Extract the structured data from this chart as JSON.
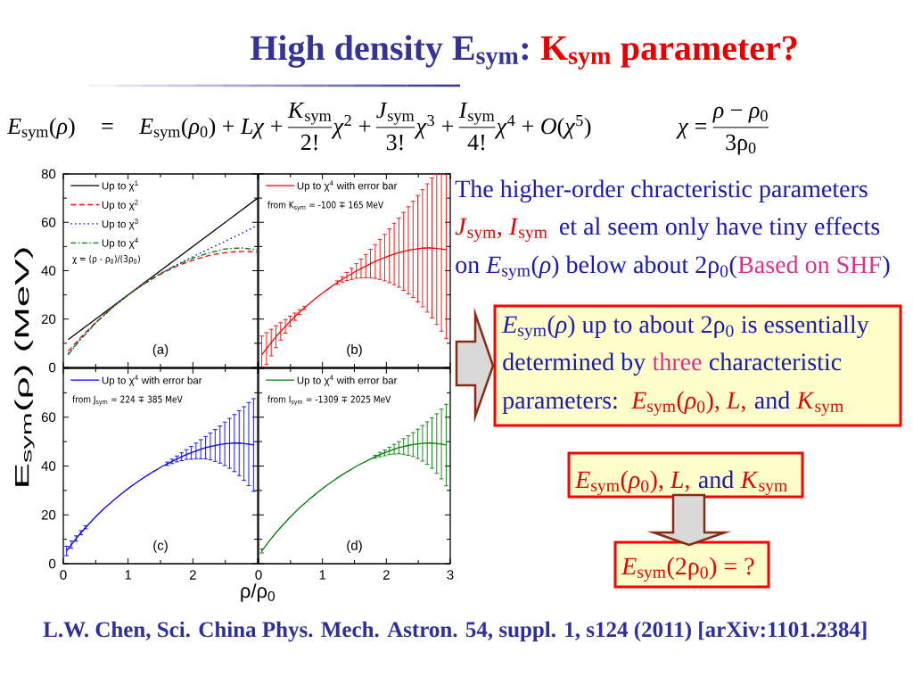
{
  "chart_data": [
    {
      "type": "other",
      "title": "High density E$_{sym}$:",
      "annotations": [
        "K$_{sym}$ parameter?",
        "*E*$_{sym}$(*ρ*)",
        "=",
        "*E*$_{sym}$(*ρ*$_{0}$) + *Lχ* +",
        "*K*$_{sym}$",
        "2!",
        "*χ*$^{2}$ +",
        "*J*$_{sym}$",
        "3!",
        "*χ*$^{3}$ +",
        "*I*$_{sym}$",
        "4!",
        "*χ*$^{4}$ + *O*(*χ*$^{5}$)",
        "*χ* =",
        "*ρ* − *ρ*$_{0}$",
        "3ρ$_{0}$",
        "The higher-order chracteristic parameters",
        "*J*$_{sym}$, *I*$_{sym}$",
        "et al seem only have tiny effects",
        "on *E*$_{sym}$(*ρ*) below about 2ρ$_{0}$(",
        "Based on SHF",
        ")",
        "*E*$_{sym}$(*ρ*) up to about 2ρ$_{0}$ is essentially",
        "determined by",
        "three",
        "characteristic",
        "parameters:",
        "*E*$_{sym}$(*ρ*$_{0}$), *L*,",
        "and",
        "*K*$_{sym}$",
        "*E*$_{sym}$(*ρ*$_{0}$), *L*,",
        "and",
        "*K*$_{sym}$",
        "*E*$_{sym}$(2ρ$_{0}$) = ?",
        "L.W. Chen, Sci. China Phys. Mech. Astron. 54, suppl. 1, s124 (2011) [arXiv:1101.2384]"
      ]
    },
    {
      "type": "line",
      "ylabel": "E$_{sym}$(ρ) (MeV)",
      "xlim": [
        0,
        3
      ],
      "ylim": [
        0,
        80
      ],
      "xticks": [
        0,
        1,
        2,
        3
      ],
      "yticks": [
        0,
        20,
        40,
        60,
        80
      ],
      "tick_labels": "y",
      "legend": "top left",
      "x": [
        0.075,
        0.25,
        0.5,
        0.75,
        1,
        1.25,
        1.5,
        1.75,
        2,
        2.25,
        2.5,
        2.75,
        3
      ],
      "series": [
        {
          "name": "Up to χ$^{1}$",
          "color": "#000000",
          "line_style": "solid",
          "x": [
            0.075,
            3
          ],
          "values": [
            11.5,
            70
          ]
        },
        {
          "name": "Up to χ$^{2}$",
          "color": "#ff0000",
          "line_style": "dashed",
          "values": [
            6.7,
            11.9,
            18.6,
            24.7,
            30,
            34.7,
            38.6,
            41.9,
            44.4,
            46.3,
            47.5,
            48.0,
            47.8
          ]
        },
        {
          "name": "Up to χ$^{3}$",
          "color": "#0000ff",
          "line_style": "dotted",
          "values": [
            5.7,
            11.3,
            18.4,
            24.6,
            30,
            34.7,
            38.8,
            42.5,
            45.8,
            49.0,
            52.2,
            55.4,
            58.8
          ]
        },
        {
          "name": "Up to χ$^{4}$",
          "color": "#008000",
          "line_style": "dashdot",
          "values": [
            5.2,
            11.1,
            18.4,
            24.6,
            30,
            34.7,
            38.8,
            42.3,
            45.2,
            47.4,
            49.0,
            49.4,
            48.6
          ]
        }
      ],
      "annotations": [
        "χ = (ρ - ρ$_{0}$)/(3ρ$_{0}$)",
        "(a)"
      ]
    },
    {
      "type": "line",
      "xlim": [
        0,
        3
      ],
      "ylim": [
        0,
        80
      ],
      "xticks": [
        0,
        1,
        2,
        3
      ],
      "yticks": [
        0,
        20,
        40,
        60,
        80
      ],
      "tick_labels": false,
      "legend": "top left",
      "x": [
        0.05,
        0.124,
        0.198,
        0.272,
        0.346,
        0.42,
        0.494,
        0.568,
        0.642,
        0.716,
        0.79,
        0.864,
        0.938,
        1.012,
        1.086,
        1.16,
        1.234,
        1.308,
        1.382,
        1.456,
        1.53,
        1.604,
        1.678,
        1.752,
        1.826,
        1.9,
        1.974,
        2.048,
        2.122,
        2.196,
        2.27,
        2.344,
        2.418,
        2.492,
        2.566,
        2.64,
        2.714,
        2.788,
        2.862,
        2.936
      ],
      "series": [
        {
          "name": "Up to χ$^{4}$ with error bar",
          "color": "#ff0000",
          "values": [
            5.2,
            7.8,
            10.3,
            12.7,
            14.9,
            17.0,
            19.1,
            21.0,
            22.9,
            24.6,
            26.3,
            27.9,
            29.5,
            31.0,
            32.4,
            33.8,
            35.1,
            36.4,
            37.6,
            38.7,
            39.9,
            40.9,
            41.9,
            42.9,
            43.8,
            44.7,
            45.4,
            46.2,
            46.9,
            47.5,
            48.0,
            48.4,
            48.8,
            49.1,
            49.3,
            49.4,
            49.4,
            49.2,
            49.0,
            48.6
          ],
          "errors": [
            [
              0,
              13.0
            ],
            6.6,
            5.5,
            4.5,
            3.6,
            2.8,
            2.1,
            1.5,
            1.0,
            0.6,
            null,
            null,
            null,
            null,
            null,
            null,
            0.7,
            1.1,
            1.7,
            2.3,
            3.0,
            3.9,
            4.8,
            5.9,
            7.0,
            8.3,
            9.6,
            11.1,
            12.7,
            14.3,
            16.1,
            18.0,
            19.9,
            22.0,
            24.2,
            26.5,
            28.9,
            [
              17.8,
              80
            ],
            [
              15.0,
              80
            ],
            [
              11.9,
              80
            ]
          ]
        }
      ],
      "annotations": [
        "from K$_{sym}$ = -100 ∓ 165 MeV",
        "(b)"
      ]
    },
    {
      "type": "line",
      "xlabel": "ρ/ρ$_{0}$",
      "xlim": [
        0,
        3
      ],
      "ylim": [
        0,
        80
      ],
      "xticks": [
        0,
        1,
        2,
        {
          "value": 3,
          "label": null
        }
      ],
      "yticks": [
        0,
        20,
        40,
        60,
        {
          "value": 80,
          "label": null
        }
      ],
      "legend": "top left",
      "x": [
        0.05,
        0.124,
        0.198,
        0.272,
        0.346,
        0.42,
        0.494,
        0.568,
        0.642,
        0.716,
        0.79,
        0.864,
        0.938,
        1.012,
        1.086,
        1.16,
        1.234,
        1.308,
        1.382,
        1.456,
        1.53,
        1.604,
        1.678,
        1.752,
        1.826,
        1.9,
        1.974,
        2.048,
        2.122,
        2.196,
        2.27,
        2.344,
        2.418,
        2.492,
        2.566,
        2.64,
        2.714,
        2.788,
        2.862,
        2.936
      ],
      "series": [
        {
          "name": "Up to χ$^{4}$ with error bar",
          "color": "#0000ff",
          "values": [
            5.2,
            7.8,
            10.3,
            12.7,
            14.9,
            17.0,
            19.1,
            21.0,
            22.9,
            24.6,
            26.3,
            27.9,
            29.5,
            31.0,
            32.4,
            33.8,
            35.1,
            36.4,
            37.6,
            38.7,
            39.9,
            40.9,
            41.9,
            42.9,
            43.8,
            44.7,
            45.4,
            46.2,
            46.9,
            47.5,
            48.0,
            48.4,
            48.8,
            49.1,
            49.3,
            49.4,
            49.4,
            49.2,
            49.0,
            48.6
          ],
          "errors": [
            1.9,
            1.5,
            1.1,
            0.8,
            0.6,
            null,
            null,
            null,
            null,
            null,
            null,
            null,
            null,
            null,
            null,
            null,
            null,
            null,
            null,
            null,
            null,
            0.7,
            0.9,
            1.2,
            1.6,
            2.0,
            2.6,
            3.2,
            3.9,
            4.6,
            5.5,
            6.5,
            7.6,
            8.9,
            10.2,
            11.7,
            13.3,
            15.1,
            17.0,
            19.0
          ]
        }
      ],
      "annotations": [
        "from J$_{sym}$ = 224 ∓ 385 MeV",
        "(c)"
      ]
    },
    {
      "type": "line",
      "xlim": [
        0,
        3
      ],
      "ylim": [
        0,
        80
      ],
      "xticks": [
        0,
        1,
        2,
        3
      ],
      "yticks": [
        0,
        20,
        40,
        60,
        80
      ],
      "tick_labels": "x",
      "legend": "top left",
      "x": [
        0.05,
        0.124,
        0.198,
        0.272,
        0.346,
        0.42,
        0.494,
        0.568,
        0.642,
        0.716,
        0.79,
        0.864,
        0.938,
        1.012,
        1.086,
        1.16,
        1.234,
        1.308,
        1.382,
        1.456,
        1.53,
        1.604,
        1.678,
        1.752,
        1.826,
        1.9,
        1.974,
        2.048,
        2.122,
        2.196,
        2.27,
        2.344,
        2.418,
        2.492,
        2.566,
        2.64,
        2.714,
        2.788,
        2.862,
        2.936
      ],
      "series": [
        {
          "name": "Up to χ$^{4}$ with error bar",
          "color": "#008000",
          "values": [
            5.2,
            7.8,
            10.3,
            12.7,
            14.9,
            17.0,
            19.1,
            21.0,
            22.9,
            24.6,
            26.3,
            27.9,
            29.5,
            31.0,
            32.4,
            33.8,
            35.1,
            36.4,
            37.6,
            38.7,
            39.9,
            40.9,
            41.9,
            42.9,
            43.8,
            44.7,
            45.4,
            46.2,
            46.9,
            47.5,
            48.0,
            48.4,
            48.8,
            49.1,
            49.3,
            49.4,
            49.4,
            49.2,
            49.0,
            48.6
          ],
          "errors": [
            0.8,
            null,
            null,
            null,
            null,
            null,
            null,
            null,
            null,
            null,
            null,
            null,
            null,
            null,
            null,
            null,
            null,
            null,
            null,
            null,
            null,
            null,
            null,
            null,
            0.6,
            0.9,
            1.2,
            1.5,
            2.0,
            2.5,
            3.2,
            4.0,
            4.9,
            6.0,
            7.3,
            8.7,
            10.3,
            12.2,
            14.3,
            16.7
          ]
        }
      ],
      "annotations": [
        "from I$_{sym}$ = -1309 ∓ 2025 MeV",
        "(d)"
      ]
    }
  ]
}
